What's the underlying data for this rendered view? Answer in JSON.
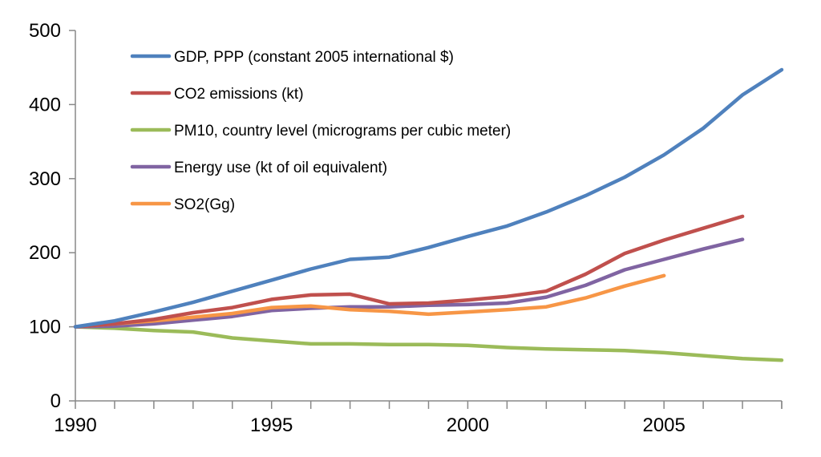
{
  "chart_data": {
    "type": "line",
    "title": "",
    "xlabel": "",
    "ylabel": "",
    "xlim": [
      1990,
      2008
    ],
    "ylim": [
      0,
      500
    ],
    "x_ticks": [
      "1990",
      "1995",
      "2000",
      "2005"
    ],
    "y_ticks": [
      "0",
      "100",
      "200",
      "300",
      "400",
      "500"
    ],
    "grid": false,
    "legend_position": "top-left",
    "series": [
      {
        "name": "GDP, PPP (constant 2005 international $)",
        "color": "#4F81BD",
        "x": [
          1990,
          1991,
          1992,
          1993,
          1994,
          1995,
          1996,
          1997,
          1998,
          1999,
          2000,
          2001,
          2002,
          2003,
          2004,
          2005,
          2006,
          2007,
          2008
        ],
        "values": [
          100,
          108,
          120,
          133,
          148,
          163,
          178,
          191,
          194,
          207,
          222,
          236,
          255,
          277,
          302,
          332,
          368,
          413,
          447
        ]
      },
      {
        "name": "CO2 emissions (kt)",
        "color": "#C0504D",
        "x": [
          1990,
          1991,
          1992,
          1993,
          1994,
          1995,
          1996,
          1997,
          1998,
          1999,
          2000,
          2001,
          2002,
          2003,
          2004,
          2005,
          2006,
          2007
        ],
        "values": [
          100,
          104,
          110,
          119,
          126,
          137,
          143,
          144,
          131,
          132,
          136,
          141,
          148,
          171,
          199,
          217,
          233,
          249
        ]
      },
      {
        "name": "PM10, country level (micrograms per cubic meter)",
        "color": "#9BBB59",
        "x": [
          1990,
          1991,
          1992,
          1993,
          1994,
          1995,
          1996,
          1997,
          1998,
          1999,
          2000,
          2001,
          2002,
          2003,
          2004,
          2005,
          2006,
          2007,
          2008
        ],
        "values": [
          100,
          98,
          95,
          93,
          85,
          81,
          77,
          77,
          76,
          76,
          75,
          72,
          70,
          69,
          68,
          65,
          61,
          57,
          55
        ]
      },
      {
        "name": "Energy use (kt of oil equivalent)",
        "color": "#8064A2",
        "x": [
          1990,
          1991,
          1992,
          1993,
          1994,
          1995,
          1996,
          1997,
          1998,
          1999,
          2000,
          2001,
          2002,
          2003,
          2004,
          2005,
          2006,
          2007
        ],
        "values": [
          100,
          101,
          104,
          109,
          114,
          122,
          125,
          127,
          127,
          129,
          130,
          132,
          140,
          156,
          177,
          191,
          205,
          218
        ]
      },
      {
        "name": "SO2(Gg)",
        "color": "#F79646",
        "x": [
          1990,
          1991,
          1992,
          1993,
          1994,
          1995,
          1996,
          1997,
          1998,
          1999,
          2000,
          2001,
          2002,
          2003,
          2004,
          2005
        ],
        "values": [
          100,
          104,
          108,
          113,
          118,
          126,
          128,
          123,
          121,
          117,
          120,
          123,
          127,
          139,
          155,
          169
        ]
      }
    ]
  }
}
